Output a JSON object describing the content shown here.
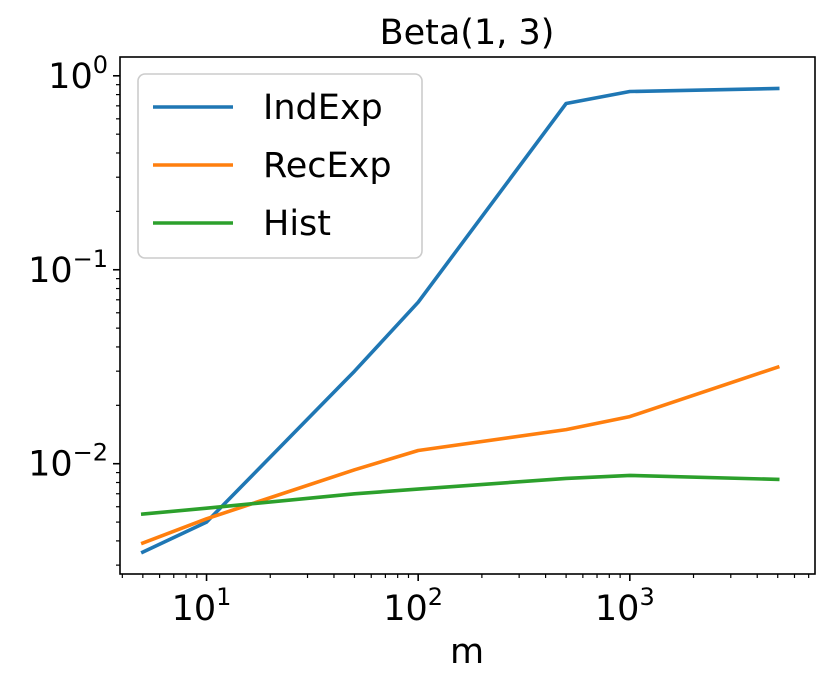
{
  "chart_data": {
    "type": "line",
    "title": "Beta(1, 3)",
    "xlabel": "m",
    "ylabel": "",
    "xscale": "log",
    "yscale": "log",
    "xlim": [
      3.9,
      7500
    ],
    "ylim": [
      0.0027,
      1.25
    ],
    "x": [
      5,
      10,
      50,
      100,
      500,
      1000,
      5000
    ],
    "series": [
      {
        "name": "IndExp",
        "color": "#1f77b4",
        "values": [
          0.0035,
          0.005,
          0.03,
          0.068,
          0.72,
          0.83,
          0.86
        ]
      },
      {
        "name": "RecExp",
        "color": "#ff7f0e",
        "values": [
          0.0039,
          0.0052,
          0.0093,
          0.0117,
          0.015,
          0.0175,
          0.0315
        ]
      },
      {
        "name": "Hist",
        "color": "#2ca02c",
        "values": [
          0.0055,
          0.0059,
          0.007,
          0.0074,
          0.0084,
          0.0087,
          0.0083
        ]
      }
    ],
    "xticks": [
      {
        "value": 10,
        "base": "10",
        "exp": "1"
      },
      {
        "value": 100,
        "base": "10",
        "exp": "2"
      },
      {
        "value": 1000,
        "base": "10",
        "exp": "3"
      }
    ],
    "yticks": [
      {
        "value": 0.01,
        "base": "10",
        "exp": "−2"
      },
      {
        "value": 0.1,
        "base": "10",
        "exp": "−1"
      },
      {
        "value": 1,
        "base": "10",
        "exp": "0"
      }
    ],
    "grid": false,
    "legend_position": "top-left"
  }
}
